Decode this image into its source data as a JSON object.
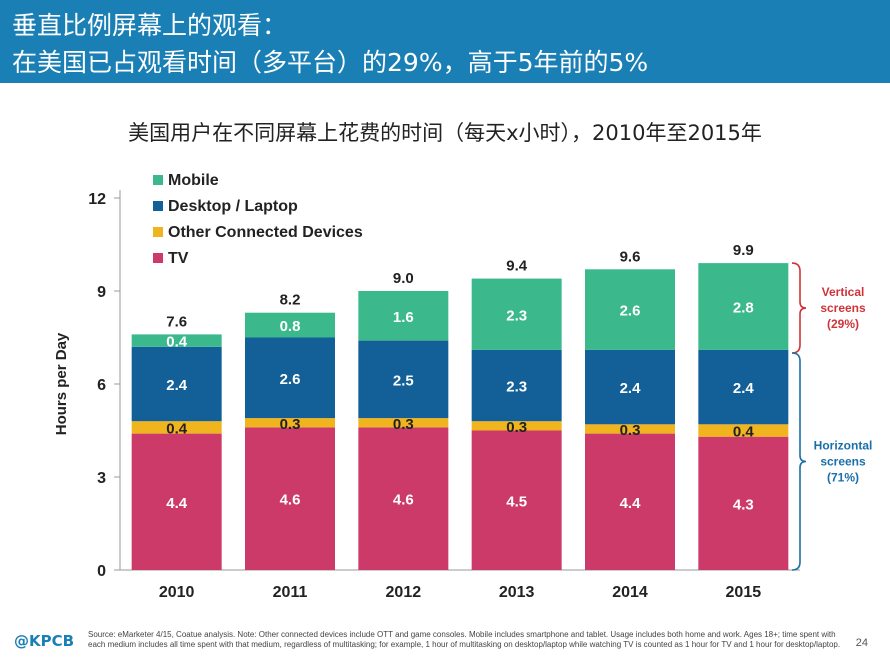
{
  "header": {
    "line1": "垂直比例屏幕上的观看：",
    "line2": "在美国已占观看时间（多平台）的29%，高于5年前的5%",
    "bg_color": "#1a7fb5"
  },
  "footer": {
    "logo": "@KPCB",
    "source": "Source: eMarketer 4/15, Coatue analysis. Note: Other connected devices include OTT and game consoles. Mobile includes smartphone and tablet. Usage includes both home and work. Ages 18+; time spent with each medium includes all time spent with that medium, regardless of multitasking; for example, 1 hour of multitasking on desktop/laptop while watching TV is counted as 1 hour for TV and 1 hour for desktop/laptop.",
    "page_number": "24"
  },
  "chart_data": {
    "type": "bar",
    "stacked": true,
    "title": "美国用户在不同屏幕上花费的时间（每天x小时），2010年至2015年",
    "xlabel": "",
    "ylabel": "Hours per Day",
    "ylim": [
      0,
      12
    ],
    "yticks": [
      0,
      3,
      6,
      9,
      12
    ],
    "grid": false,
    "legend_position": "top-left",
    "categories": [
      "2010",
      "2011",
      "2012",
      "2013",
      "2014",
      "2015"
    ],
    "series": [
      {
        "name": "TV",
        "color": "#cc3a6a",
        "values": [
          4.4,
          4.6,
          4.6,
          4.5,
          4.4,
          4.3
        ]
      },
      {
        "name": "Other Connected Devices",
        "color": "#f0b41e",
        "values": [
          0.4,
          0.3,
          0.3,
          0.3,
          0.3,
          0.4
        ]
      },
      {
        "name": "Desktop / Laptop",
        "color": "#135f97",
        "values": [
          2.4,
          2.6,
          2.5,
          2.3,
          2.4,
          2.4
        ]
      },
      {
        "name": "Mobile",
        "color": "#3cb98c",
        "values": [
          0.4,
          0.8,
          1.6,
          2.3,
          2.6,
          2.8
        ]
      }
    ],
    "legend_order": [
      "Mobile",
      "Desktop / Laptop",
      "Other Connected Devices",
      "TV"
    ],
    "totals": [
      "7.6",
      "8.2",
      "9.0",
      "9.4",
      "9.6",
      "9.9"
    ],
    "annotations": [
      {
        "text_lines": [
          "Vertical",
          "screens",
          "(29%)"
        ],
        "color": "#d0343a",
        "from": 7.0,
        "to": 9.9
      },
      {
        "text_lines": [
          "Horizontal",
          "screens",
          "(71%)"
        ],
        "color": "#1a6fa8",
        "from": 0,
        "to": 7.0
      }
    ]
  }
}
